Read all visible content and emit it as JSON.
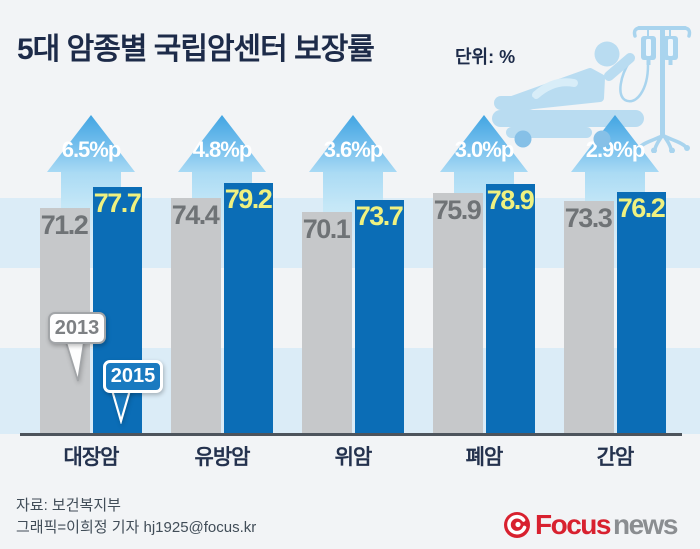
{
  "header": {
    "title": "5대 암종별 국립암센터 보장률",
    "unit_label": "단위: %"
  },
  "chart_data": {
    "type": "bar",
    "title": "5대 암종별 국립암센터 보장률",
    "unit": "%",
    "categories": [
      "대장암",
      "유방암",
      "위암",
      "폐암",
      "간암"
    ],
    "series": [
      {
        "name": "2013",
        "values": [
          71.2,
          74.4,
          70.1,
          75.9,
          73.3
        ]
      },
      {
        "name": "2015",
        "values": [
          77.7,
          79.2,
          73.7,
          78.9,
          76.2
        ]
      }
    ],
    "delta_labels": [
      "6.5%p",
      "4.8%p",
      "3.6%p",
      "3.0%p",
      "2.9%p"
    ],
    "ylim": [
      0,
      80
    ],
    "grid": "horizontal-bands",
    "legend_position": "speech-bubbles-on-first-group",
    "colors": {
      "bar_2013": "#c6c8ca",
      "bar_2015": "#0b6db6",
      "value_2013_text": "#6f7376",
      "value_2015_text": "#eff180",
      "arrow_blue": "#58b0e7",
      "band_blue": "#dbecf7",
      "baseline": "#4d545c"
    }
  },
  "legend": {
    "label_2013": "2013",
    "label_2015": "2015"
  },
  "footer": {
    "source": "자료: 보건복지부",
    "credit": "그래픽=이희정 기자 hj1925@focus.kr"
  },
  "logo": {
    "prefix": "Focus",
    "suffix": "news"
  }
}
